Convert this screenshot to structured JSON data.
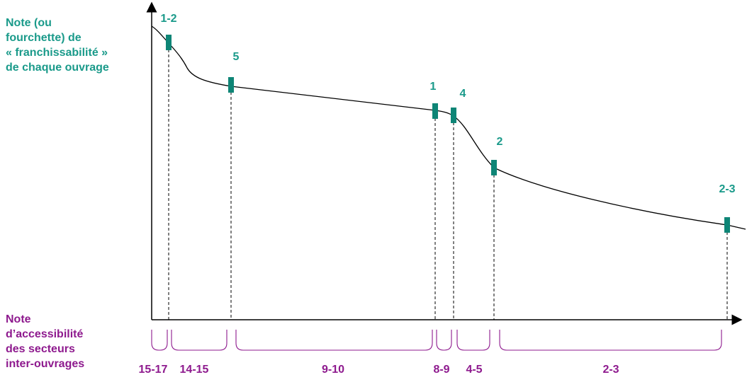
{
  "y_axis_label": [
    "Note (ou",
    "fourchette) de",
    "« franchissabilité »",
    "de chaque ouvrage"
  ],
  "x_axis_label": [
    "Note",
    "d’accessibilité",
    "des secteurs",
    "inter-ouvrages"
  ],
  "ouvrages": [
    {
      "label": "1-2"
    },
    {
      "label": "5"
    },
    {
      "label": "1"
    },
    {
      "label": "4"
    },
    {
      "label": "2"
    },
    {
      "label": "2-3"
    }
  ],
  "secteurs": [
    {
      "label": "15-17"
    },
    {
      "label": "14-15"
    },
    {
      "label": "9-10"
    },
    {
      "label": "8-9"
    },
    {
      "label": "4-5"
    },
    {
      "label": "2-3"
    }
  ],
  "colors": {
    "ouvrage_marker": "#0e8576",
    "ouvrage_label": "#1a9a8a",
    "secteur": "#8e1a8e",
    "axis": "#000000",
    "curve": "#000000"
  }
}
